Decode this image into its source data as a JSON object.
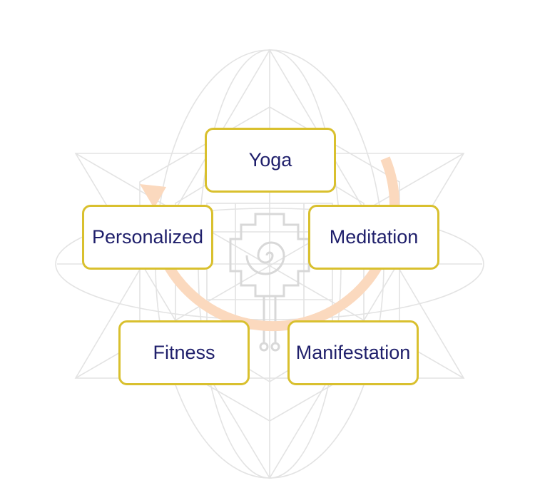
{
  "diagram": {
    "nodes": {
      "yoga": "Yoga",
      "meditation": "Meditation",
      "personalized": "Personalized",
      "fitness": "Fitness",
      "manifestation": "Manifestation"
    },
    "colors": {
      "box_border": "#d9c02e",
      "text": "#1f1f6b",
      "cycle_arrow": "#fbd9be",
      "sacred_geometry": "#e3e3e3"
    },
    "background_motif": "sacred-geometry-star-with-spiral"
  }
}
